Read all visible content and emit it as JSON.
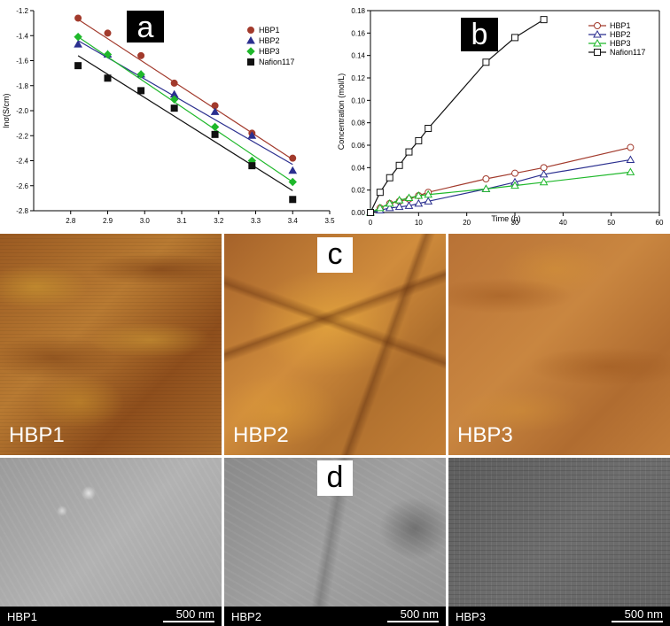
{
  "figure": {
    "panel_labels": [
      "a",
      "b",
      "c",
      "d"
    ],
    "afm_samples": [
      "HBP1",
      "HBP2",
      "HBP3"
    ],
    "sem_samples": [
      "HBP1",
      "HBP2",
      "HBP3"
    ],
    "sem_scale_bar": "500 nm"
  },
  "chart_data": [
    {
      "type": "scatter",
      "panel": "a",
      "xlabel": "",
      "ylabel": "lnσ(S/cm)",
      "xlim": [
        2.7,
        3.5
      ],
      "ylim": [
        -2.8,
        -1.2
      ],
      "xticks": [
        "2.8",
        "2.9",
        "3.0",
        "3.1",
        "3.2",
        "3.3",
        "3.4",
        "3.5"
      ],
      "yticks": [
        "-1.2",
        "-1.4",
        "-1.6",
        "-1.8",
        "-2.0",
        "-2.2",
        "-2.4",
        "-2.6",
        "-2.8"
      ],
      "grid": false,
      "legend_position": "top-right",
      "series": [
        {
          "name": "HBP1",
          "color": "#a23a2c",
          "marker": "circle",
          "x": [
            2.82,
            2.9,
            2.99,
            3.08,
            3.19,
            3.29,
            3.4
          ],
          "y": [
            -1.26,
            -1.38,
            -1.56,
            -1.78,
            -1.96,
            -2.18,
            -2.38
          ],
          "fit": [
            [
              2.82,
              -1.27
            ],
            [
              3.4,
              -2.39
            ]
          ]
        },
        {
          "name": "HBP2",
          "color": "#2b2f8f",
          "marker": "triangle",
          "x": [
            2.82,
            2.9,
            2.99,
            3.08,
            3.19,
            3.29,
            3.4
          ],
          "y": [
            -1.47,
            -1.55,
            -1.71,
            -1.87,
            -2.01,
            -2.2,
            -2.48
          ],
          "fit": [
            [
              2.82,
              -1.44
            ],
            [
              3.4,
              -2.43
            ]
          ]
        },
        {
          "name": "HBP3",
          "color": "#1fb82b",
          "marker": "diamond",
          "x": [
            2.82,
            2.9,
            2.99,
            3.08,
            3.19,
            3.29,
            3.4
          ],
          "y": [
            -1.41,
            -1.55,
            -1.71,
            -1.91,
            -2.13,
            -2.4,
            -2.57
          ],
          "fit": [
            [
              2.82,
              -1.41
            ],
            [
              3.4,
              -2.57
            ]
          ]
        },
        {
          "name": "Nafion117",
          "color": "#111111",
          "marker": "square",
          "x": [
            2.82,
            2.9,
            2.99,
            3.08,
            3.19,
            3.29,
            3.4
          ],
          "y": [
            -1.64,
            -1.74,
            -1.84,
            -1.98,
            -2.19,
            -2.44,
            -2.71
          ],
          "fit": [
            [
              2.82,
              -1.56
            ],
            [
              3.4,
              -2.64
            ]
          ]
        }
      ]
    },
    {
      "type": "line",
      "panel": "b",
      "xlabel": "Time (h)",
      "ylabel": "Concentration (mol/L)",
      "xlim": [
        0,
        60
      ],
      "ylim": [
        0,
        0.18
      ],
      "xticks": [
        "0",
        "10",
        "20",
        "30",
        "40",
        "50",
        "60"
      ],
      "yticks": [
        "0.00",
        "0.02",
        "0.04",
        "0.06",
        "0.08",
        "0.10",
        "0.12",
        "0.14",
        "0.16",
        "0.18"
      ],
      "grid": false,
      "legend_position": "top-right",
      "series": [
        {
          "name": "HBP1",
          "color": "#a23a2c",
          "marker": "circle",
          "x": [
            0,
            2,
            4,
            6,
            8,
            10,
            12,
            24,
            30,
            36,
            54
          ],
          "y": [
            0,
            0.004,
            0.008,
            0.01,
            0.012,
            0.015,
            0.018,
            0.03,
            0.035,
            0.04,
            0.058
          ]
        },
        {
          "name": "HBP2",
          "color": "#2b2f8f",
          "marker": "triangle",
          "x": [
            0,
            2,
            4,
            6,
            8,
            10,
            12,
            24,
            30,
            36,
            54
          ],
          "y": [
            0,
            0.002,
            0.004,
            0.005,
            0.006,
            0.008,
            0.01,
            0.021,
            0.027,
            0.034,
            0.047
          ]
        },
        {
          "name": "HBP3",
          "color": "#1fb82b",
          "marker": "triangle",
          "x": [
            0,
            2,
            4,
            6,
            8,
            10,
            12,
            24,
            30,
            36,
            54
          ],
          "y": [
            0,
            0.004,
            0.008,
            0.011,
            0.013,
            0.015,
            0.016,
            0.021,
            0.024,
            0.027,
            0.036
          ]
        },
        {
          "name": "Nafion117",
          "color": "#111111",
          "marker": "square",
          "x": [
            0,
            2,
            4,
            6,
            8,
            10,
            12,
            24,
            30,
            36
          ],
          "y": [
            0,
            0.018,
            0.031,
            0.042,
            0.054,
            0.064,
            0.075,
            0.134,
            0.156,
            0.172
          ]
        }
      ]
    }
  ]
}
